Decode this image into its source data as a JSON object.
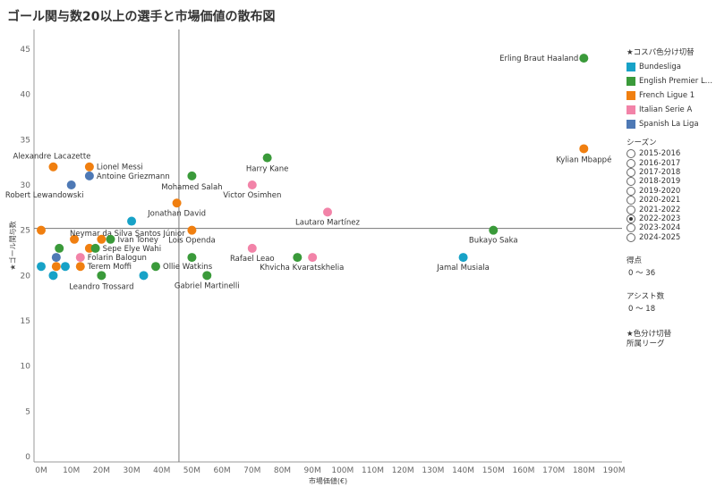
{
  "title": "ゴール関与数20以上の選手と市場価値の散布図",
  "legend": {
    "header": "★コスパ色分け切替",
    "items": [
      {
        "label": "Bundesliga",
        "color": "#17a2c7"
      },
      {
        "label": "English Premier Lea..",
        "color": "#3a9a3a"
      },
      {
        "label": "French Ligue 1",
        "color": "#f07f10"
      },
      {
        "label": "Italian Serie A",
        "color": "#f283a8"
      },
      {
        "label": "Spanish La Liga",
        "color": "#4e79b5"
      }
    ]
  },
  "season_filter": {
    "header": "シーズン",
    "options": [
      "2015-2016",
      "2016-2017",
      "2017-2018",
      "2018-2019",
      "2019-2020",
      "2020-2021",
      "2021-2022",
      "2022-2023",
      "2023-2024",
      "2024-2025"
    ],
    "selected": "2022-2023"
  },
  "filters": [
    {
      "label": "得点",
      "range": "0 〜 36"
    },
    {
      "label": "アシスト数",
      "range": "0 〜 18"
    }
  ],
  "note": {
    "line1": "★色分け切替",
    "line2": "所属リーグ"
  },
  "chart_data": {
    "type": "scatter",
    "title": "ゴール関与数20以上の選手と市場価値の散布図",
    "xlabel": "市場価値(€)",
    "ylabel": "★ゴール関与数",
    "xlim": [
      0,
      190
    ],
    "ylim": [
      0,
      46
    ],
    "x_ticks": [
      "0M",
      "10M",
      "20M",
      "30M",
      "40M",
      "50M",
      "60M",
      "70M",
      "80M",
      "90M",
      "100M",
      "110M",
      "120M",
      "130M",
      "140M",
      "150M",
      "160M",
      "170M",
      "180M",
      "190M"
    ],
    "y_ticks": [
      0,
      5,
      10,
      15,
      20,
      25,
      30,
      35,
      40,
      45
    ],
    "reference_lines": {
      "x": 45.7,
      "y": 25.2
    },
    "grid": false,
    "points": [
      {
        "label": "Erling Braut Haaland",
        "x": 180,
        "y": 44,
        "league": "English Premier Lea.."
      },
      {
        "label": "Kylian Mbappé",
        "x": 180,
        "y": 34,
        "league": "French Ligue 1"
      },
      {
        "label": "Harry Kane",
        "x": 75,
        "y": 33,
        "league": "English Premier Lea.."
      },
      {
        "label": "Alexandre Lacazette",
        "x": 4,
        "y": 32,
        "league": "French Ligue 1"
      },
      {
        "label": "Lionel Messi",
        "x": 16,
        "y": 32,
        "league": "French Ligue 1"
      },
      {
        "label": "Antoine Griezmann",
        "x": 16,
        "y": 31,
        "league": "Spanish La Liga"
      },
      {
        "label": "Mohamed Salah",
        "x": 50,
        "y": 31,
        "league": "English Premier Lea.."
      },
      {
        "label": "Robert Lewandowski",
        "x": 10,
        "y": 30,
        "league": "Spanish La Liga"
      },
      {
        "label": "Victor Osimhen",
        "x": 70,
        "y": 30,
        "league": "Italian Serie A"
      },
      {
        "label": "Jonathan David",
        "x": 45,
        "y": 28,
        "league": "French Ligue 1"
      },
      {
        "label": "Lautaro Martínez",
        "x": 95,
        "y": 27,
        "league": "Italian Serie A"
      },
      {
        "label": "",
        "x": 30,
        "y": 26,
        "league": "Bundesliga"
      },
      {
        "label": "Bukayo Saka",
        "x": 150,
        "y": 25,
        "league": "English Premier Lea.."
      },
      {
        "label": "",
        "x": 0,
        "y": 25,
        "league": "French Ligue 1"
      },
      {
        "label": "Lois Openda",
        "x": 50,
        "y": 25,
        "league": "French Ligue 1"
      },
      {
        "label": "Neymar da Silva Santos Júnior",
        "x": 11,
        "y": 24,
        "league": "French Ligue 1"
      },
      {
        "label": "",
        "x": 20,
        "y": 24,
        "league": "French Ligue 1"
      },
      {
        "label": "Ivan Toney",
        "x": 23,
        "y": 24,
        "league": "English Premier Lea.."
      },
      {
        "label": "",
        "x": 6,
        "y": 23,
        "league": "English Premier Lea.."
      },
      {
        "label": "",
        "x": 16,
        "y": 23,
        "league": "French Ligue 1"
      },
      {
        "label": "Sepe Elye Wahi",
        "x": 18,
        "y": 23,
        "league": "English Premier Lea.."
      },
      {
        "label": "Rafael Leao",
        "x": 70,
        "y": 23,
        "league": "Italian Serie A"
      },
      {
        "label": "",
        "x": 5,
        "y": 22,
        "league": "Spanish La Liga"
      },
      {
        "label": "Folarin Balogun",
        "x": 13,
        "y": 22,
        "league": "Italian Serie A"
      },
      {
        "label": "",
        "x": 50,
        "y": 22,
        "league": "English Premier Lea.."
      },
      {
        "label": "Khvicha Kvaratskhelia",
        "x": 85,
        "y": 22,
        "league": "English Premier Lea.."
      },
      {
        "label": "",
        "x": 90,
        "y": 22,
        "league": "Italian Serie A"
      },
      {
        "label": "Jamal Musiala",
        "x": 140,
        "y": 22,
        "league": "Bundesliga"
      },
      {
        "label": "",
        "x": 0,
        "y": 21,
        "league": "Bundesliga"
      },
      {
        "label": "",
        "x": 5,
        "y": 21,
        "league": "French Ligue 1"
      },
      {
        "label": "",
        "x": 8,
        "y": 21,
        "league": "Bundesliga"
      },
      {
        "label": "Terem Moffi",
        "x": 13,
        "y": 21,
        "league": "French Ligue 1"
      },
      {
        "label": "Ollie Watkins",
        "x": 38,
        "y": 21,
        "league": "English Premier Lea.."
      },
      {
        "label": "",
        "x": 4,
        "y": 20,
        "league": "Bundesliga"
      },
      {
        "label": "Leandro Trossard",
        "x": 20,
        "y": 20,
        "league": "English Premier Lea.."
      },
      {
        "label": "",
        "x": 34,
        "y": 20,
        "league": "Bundesliga"
      },
      {
        "label": "Gabriel Martinelli",
        "x": 55,
        "y": 20,
        "league": "English Premier Lea.."
      }
    ]
  }
}
